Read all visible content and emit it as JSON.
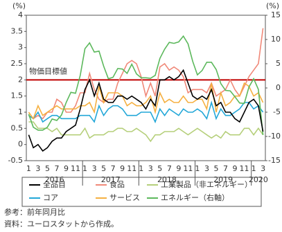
{
  "chart_data": {
    "type": "line",
    "ylabel": "(%)",
    "y2label": "(%)",
    "ylim": [
      -0.5,
      4
    ],
    "yticks": [
      4,
      3.5,
      3,
      2.5,
      2,
      1.5,
      1,
      0.5,
      0,
      -0.5
    ],
    "y2lim": [
      -15,
      15
    ],
    "y2ticks": [
      15,
      10,
      5,
      0,
      -5,
      -10,
      -15
    ],
    "categories": [
      "1",
      null,
      "3",
      null,
      "5",
      null,
      "7",
      null,
      "9",
      null,
      "11",
      null,
      "1",
      null,
      "3",
      null,
      "5",
      null,
      "7",
      null,
      "9",
      null,
      "11",
      null,
      "1",
      null,
      "3",
      null,
      "5",
      null,
      "7",
      null,
      "9",
      null,
      "11",
      null,
      "1",
      null,
      "3",
      null,
      "5",
      null,
      "7",
      null,
      "9",
      null,
      "11",
      null,
      "1",
      null,
      "3"
    ],
    "years": [
      "2016",
      "2017",
      "2018",
      "2019",
      "2020"
    ],
    "target": {
      "label": "物価目標値",
      "value": 2,
      "color": "#c00000"
    },
    "series": [
      {
        "name": "全品目",
        "color": "#000000",
        "values": [
          0.3,
          -0.1,
          0.0,
          -0.2,
          -0.1,
          0.1,
          0.2,
          0.2,
          0.4,
          0.5,
          0.6,
          1.1,
          1.7,
          2.0,
          1.5,
          1.9,
          1.4,
          1.3,
          1.3,
          1.5,
          1.5,
          1.4,
          1.5,
          1.4,
          1.3,
          1.1,
          1.4,
          1.2,
          2.0,
          2.0,
          2.1,
          2.0,
          2.1,
          2.3,
          1.9,
          1.5,
          1.4,
          1.5,
          1.4,
          1.7,
          1.2,
          1.3,
          1.0,
          1.0,
          0.8,
          0.7,
          1.0,
          1.3,
          1.4,
          1.2,
          0.4
        ]
      },
      {
        "name": "食品",
        "color": "#f08878",
        "values": [
          0.9,
          0.8,
          0.9,
          0.8,
          1.0,
          1.0,
          1.4,
          1.3,
          1.0,
          1.0,
          1.2,
          1.6,
          1.6,
          2.2,
          1.7,
          1.4,
          1.3,
          1.4,
          1.4,
          1.9,
          2.2,
          2.5,
          2.6,
          2.5,
          2.1,
          1.5,
          1.9,
          1.5,
          2.4,
          2.5,
          2.3,
          2.4,
          2.3,
          2.1,
          1.6,
          1.7,
          1.7,
          1.7,
          1.6,
          1.9,
          1.5,
          1.6,
          1.7,
          2.0,
          1.7,
          1.5,
          1.8,
          2.1,
          2.3,
          2.5,
          3.6
        ]
      },
      {
        "name": "工業製品（非エネルギー）",
        "color": "#b5cf7a",
        "values": [
          0.7,
          0.7,
          0.5,
          0.5,
          0.5,
          0.4,
          0.5,
          0.3,
          0.3,
          0.3,
          0.3,
          0.3,
          0.5,
          0.2,
          0.3,
          0.3,
          0.3,
          0.4,
          0.4,
          0.5,
          0.5,
          0.4,
          0.4,
          0.5,
          0.4,
          0.3,
          0.1,
          0.3,
          0.3,
          0.4,
          0.4,
          0.4,
          0.5,
          0.4,
          0.3,
          0.4,
          0.5,
          0.4,
          0.3,
          0.2,
          0.3,
          0.2,
          0.4,
          0.3,
          0.3,
          0.3,
          0.5,
          0.5,
          0.3,
          0.5,
          0.3
        ]
      },
      {
        "name": "コア",
        "color": "#22a7d8",
        "values": [
          0.9,
          0.8,
          1.0,
          0.7,
          0.8,
          0.9,
          0.9,
          0.8,
          0.8,
          0.8,
          0.8,
          0.9,
          0.9,
          0.9,
          0.7,
          1.2,
          0.9,
          1.1,
          1.2,
          1.2,
          1.1,
          0.9,
          0.9,
          0.9,
          1.0,
          1.0,
          1.0,
          0.7,
          1.1,
          0.9,
          1.1,
          1.0,
          0.9,
          1.1,
          1.0,
          1.0,
          1.1,
          1.0,
          0.8,
          1.3,
          0.8,
          1.1,
          0.9,
          0.9,
          1.0,
          1.1,
          1.3,
          1.3,
          1.1,
          1.2,
          1.0
        ]
      },
      {
        "name": "サービス",
        "color": "#f5b041",
        "values": [
          1.0,
          0.8,
          1.2,
          0.9,
          1.0,
          1.1,
          1.2,
          1.1,
          1.1,
          1.1,
          1.1,
          1.2,
          1.2,
          1.3,
          1.0,
          1.8,
          1.3,
          1.6,
          1.6,
          1.6,
          1.5,
          1.2,
          1.3,
          1.2,
          1.2,
          1.3,
          1.5,
          1.0,
          1.6,
          1.3,
          1.4,
          1.3,
          1.3,
          1.5,
          1.3,
          1.3,
          1.4,
          1.4,
          1.1,
          1.9,
          1.0,
          1.6,
          1.2,
          1.3,
          1.5,
          1.5,
          1.9,
          1.8,
          1.5,
          1.6,
          1.3
        ]
      },
      {
        "name": "エネルギー（右軸）",
        "color": "#5cb85c",
        "axis": "y2",
        "values": [
          -5.4,
          -8.1,
          -8.7,
          -8.7,
          -8.1,
          -6.4,
          -6.7,
          -5.6,
          -3.0,
          -0.9,
          -1.1,
          2.6,
          8.1,
          9.3,
          7.4,
          7.6,
          4.5,
          1.9,
          2.2,
          4.0,
          3.9,
          3.0,
          4.9,
          2.9,
          2.1,
          2.1,
          2.0,
          2.6,
          6.1,
          8.0,
          9.4,
          9.2,
          9.5,
          10.7,
          9.1,
          5.5,
          2.7,
          3.6,
          5.3,
          5.3,
          3.8,
          0.9,
          -0.5,
          -0.6,
          -1.8,
          -3.1,
          -3.2,
          0.2,
          1.9,
          -0.3,
          -9.7
        ]
      }
    ],
    "notes": [
      "参考：前年同月比",
      "資料：ユーロスタットから作成。"
    ]
  }
}
